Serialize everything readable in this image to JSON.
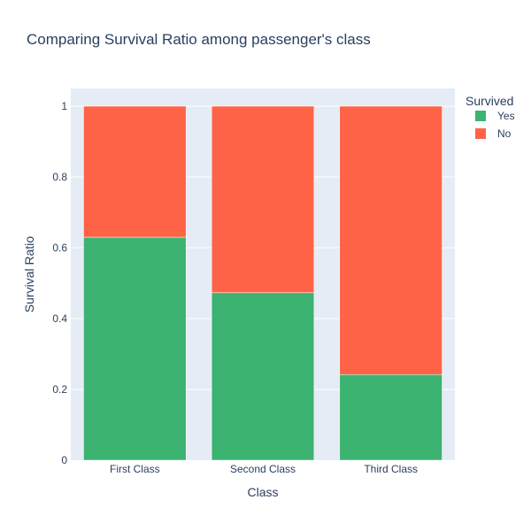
{
  "chart_data": {
    "type": "bar",
    "barmode": "stack",
    "title": "Comparing Survival Ratio among passenger's class",
    "xlabel": "Class",
    "ylabel": "Survival Ratio",
    "categories": [
      "First Class",
      "Second Class",
      "Third Class"
    ],
    "series": [
      {
        "name": "Yes",
        "color": "#3cb371",
        "values": [
          0.63,
          0.473,
          0.242
        ]
      },
      {
        "name": "No",
        "color": "#ff6347",
        "values": [
          0.37,
          0.527,
          0.758
        ]
      }
    ],
    "ylim": [
      0,
      1.05
    ],
    "yticks": [
      0,
      0.2,
      0.4,
      0.6,
      0.8,
      1
    ],
    "ytick_labels": [
      "0",
      "0.2",
      "0.4",
      "0.6",
      "0.8",
      "1"
    ],
    "grid": true,
    "plot_background": "#e5ecf6",
    "legend": {
      "title": "Survived",
      "placement": "right"
    }
  }
}
